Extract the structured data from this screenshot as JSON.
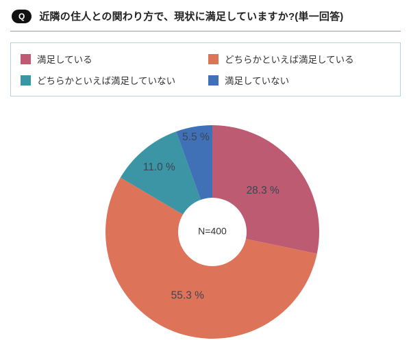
{
  "header": {
    "q_badge": "Q",
    "title": "近隣の住人との関わり方で、現状に満足していますか?(単一回答)"
  },
  "chart_data": {
    "type": "pie",
    "subtype": "donut",
    "title": "近隣の住人との関わり方で、現状に満足していますか?(単一回答)",
    "center_label": "N=400",
    "sample_size": 400,
    "value_suffix": " %",
    "start_angle": "top",
    "direction": "clockwise",
    "legend_position": "top",
    "slices": [
      {
        "label": "満足している",
        "value": 28.3,
        "color": "#bc5b72"
      },
      {
        "label": "どちらかといえば満足している",
        "value": 55.3,
        "color": "#dd7459"
      },
      {
        "label": "どちらかといえば満足していない",
        "value": 11.0,
        "color": "#3b95a4"
      },
      {
        "label": "満足していない",
        "value": 5.5,
        "color": "#4070b6"
      }
    ]
  }
}
